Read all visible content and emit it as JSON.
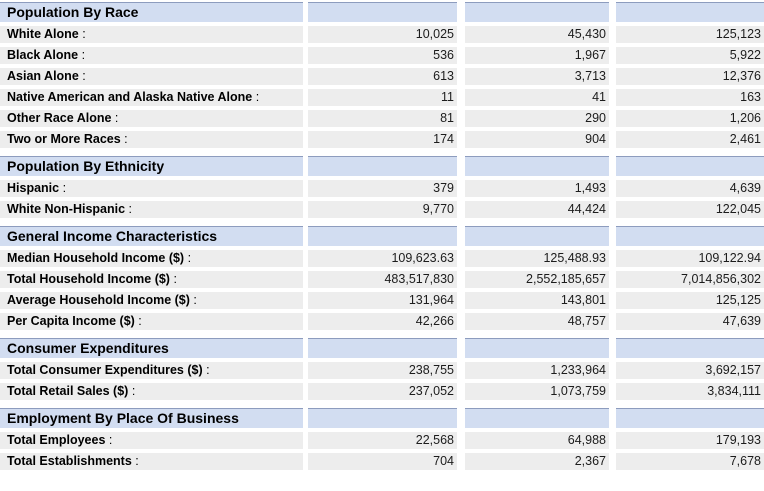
{
  "report": {
    "label_separator": " :",
    "sections": [
      {
        "title": "Population By Race",
        "rows": [
          {
            "label": "White Alone",
            "values": [
              "10,025",
              "45,430",
              "125,123"
            ]
          },
          {
            "label": "Black Alone",
            "values": [
              "536",
              "1,967",
              "5,922"
            ]
          },
          {
            "label": "Asian Alone",
            "values": [
              "613",
              "3,713",
              "12,376"
            ]
          },
          {
            "label": "Native American and Alaska Native Alone",
            "values": [
              "11",
              "41",
              "163"
            ]
          },
          {
            "label": "Other Race Alone",
            "values": [
              "81",
              "290",
              "1,206"
            ]
          },
          {
            "label": "Two or More Races",
            "values": [
              "174",
              "904",
              "2,461"
            ]
          }
        ]
      },
      {
        "title": "Population By Ethnicity",
        "rows": [
          {
            "label": "Hispanic",
            "values": [
              "379",
              "1,493",
              "4,639"
            ]
          },
          {
            "label": "White Non-Hispanic",
            "values": [
              "9,770",
              "44,424",
              "122,045"
            ]
          }
        ]
      },
      {
        "title": "General Income Characteristics",
        "rows": [
          {
            "label": "Median Household Income ($)",
            "values": [
              "109,623.63",
              "125,488.93",
              "109,122.94"
            ]
          },
          {
            "label": "Total Household Income ($)",
            "values": [
              "483,517,830",
              "2,552,185,657",
              "7,014,856,302"
            ]
          },
          {
            "label": "Average Household Income ($)",
            "values": [
              "131,964",
              "143,801",
              "125,125"
            ]
          },
          {
            "label": "Per Capita Income ($)",
            "values": [
              "42,266",
              "48,757",
              "47,639"
            ]
          }
        ]
      },
      {
        "title": "Consumer Expenditures",
        "rows": [
          {
            "label": "Total Consumer Expenditures ($)",
            "values": [
              "238,755",
              "1,233,964",
              "3,692,157"
            ]
          },
          {
            "label": "Total Retail Sales ($)",
            "values": [
              "237,052",
              "1,073,759",
              "3,834,111"
            ]
          }
        ]
      },
      {
        "title": "Employment By Place Of Business",
        "rows": [
          {
            "label": "Total Employees",
            "values": [
              "22,568",
              "64,988",
              "179,193"
            ]
          },
          {
            "label": "Total Establishments",
            "values": [
              "704",
              "2,367",
              "7,678"
            ]
          }
        ]
      }
    ]
  },
  "colors": {
    "section_header_bg": "#d2ddf1",
    "section_header_border": "#8d9cbe",
    "row_bg": "#ededed",
    "label_text": "#000000",
    "value_text": "#1c1c1c"
  }
}
